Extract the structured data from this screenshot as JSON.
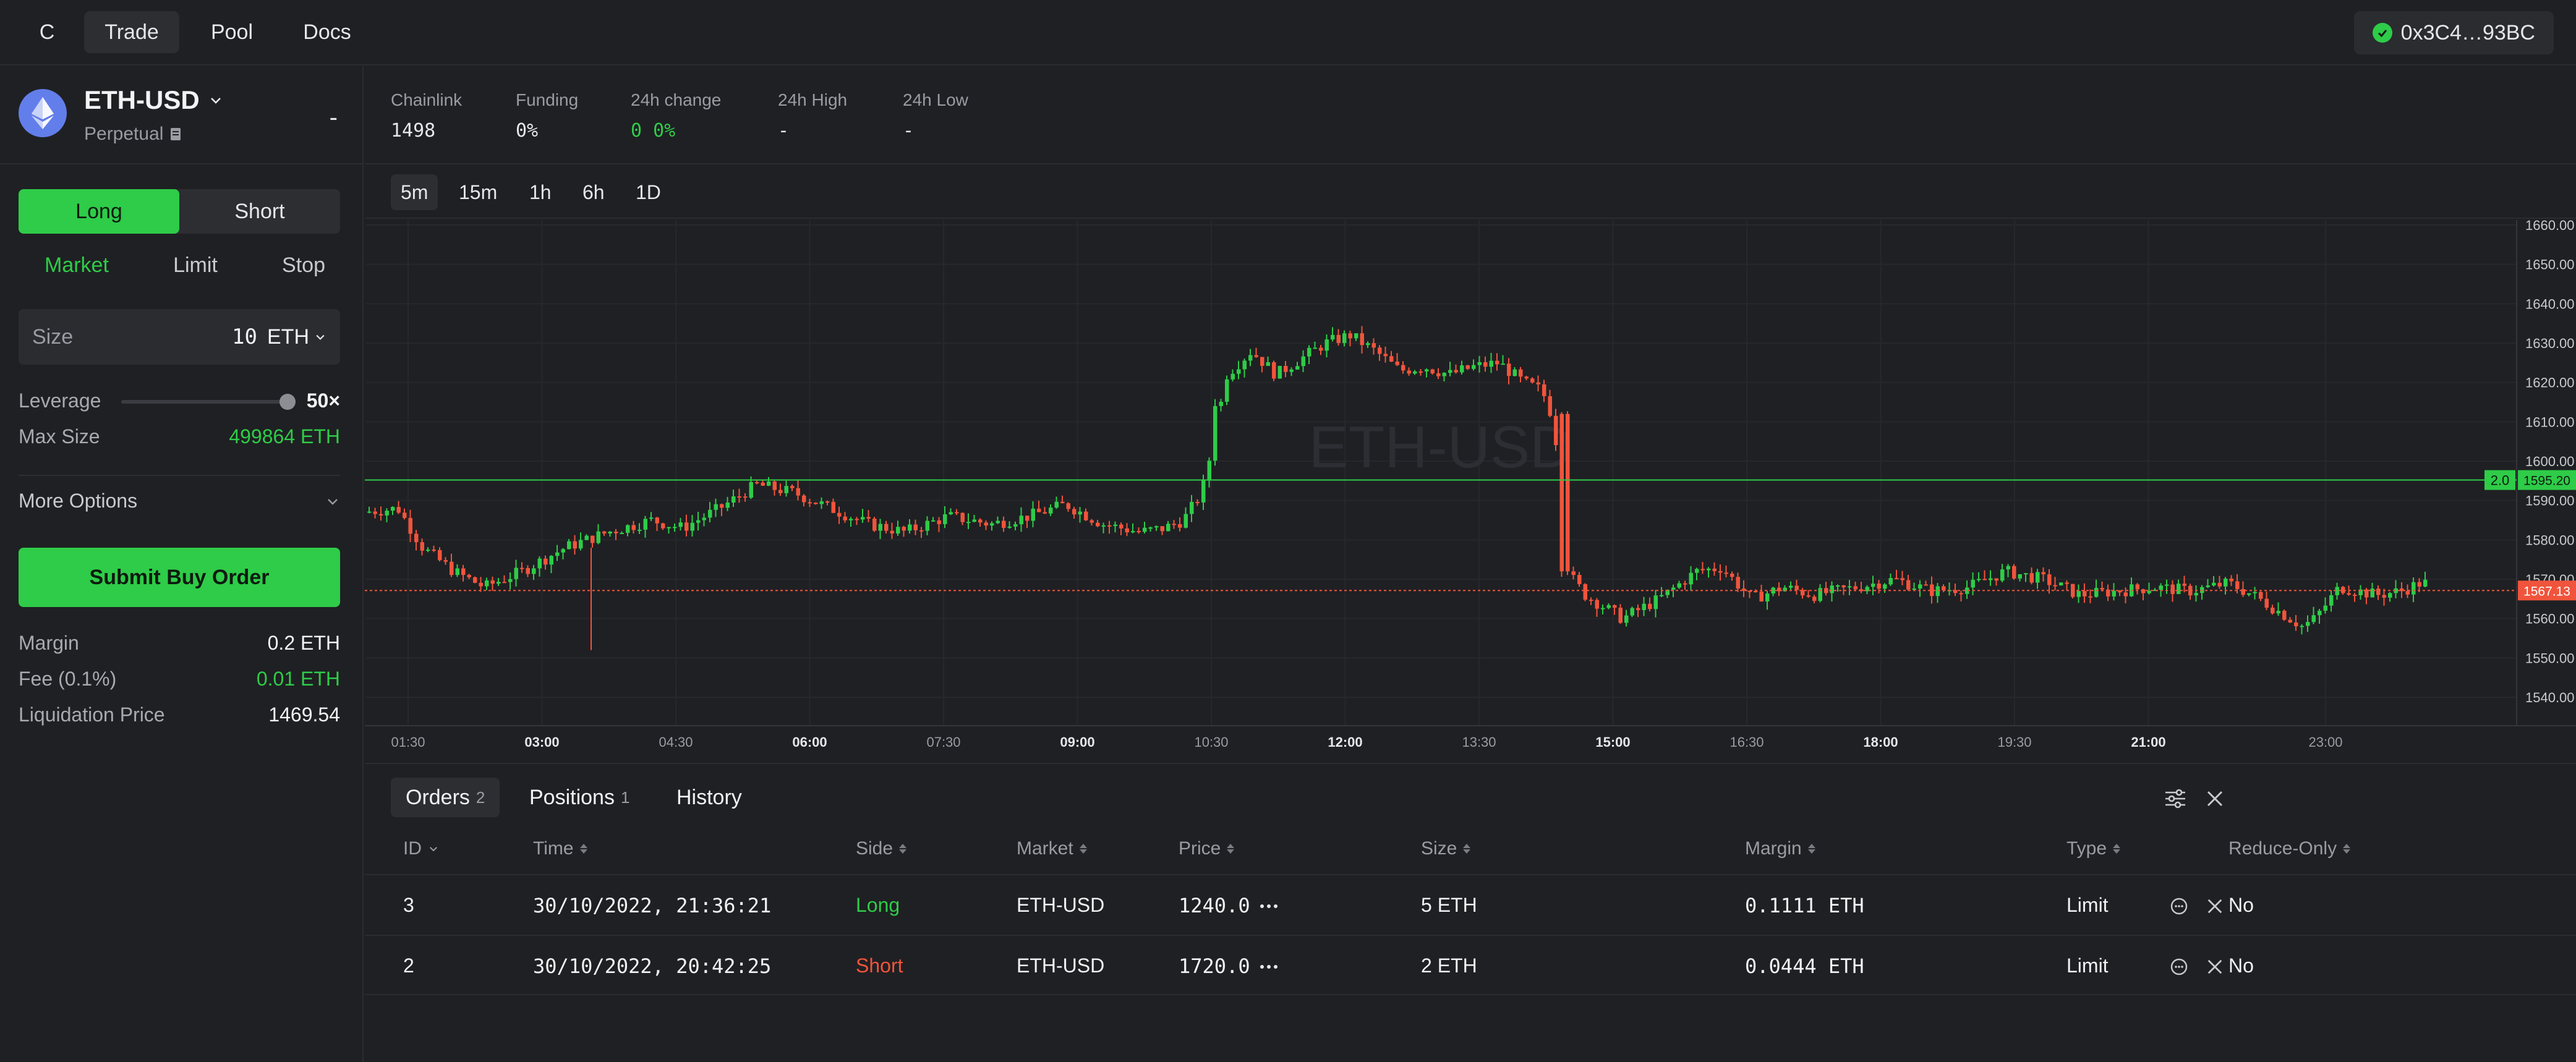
{
  "nav": {
    "logo": "C",
    "items": [
      {
        "label": "Trade",
        "active": true
      },
      {
        "label": "Pool",
        "active": false
      },
      {
        "label": "Docs",
        "active": false
      }
    ],
    "wallet": "0x3C4…93BC"
  },
  "market": {
    "name": "ETH-USD",
    "type": "Perpetual",
    "price": "-"
  },
  "stats": [
    {
      "label": "Chainlink",
      "value": "1498"
    },
    {
      "label": "Funding",
      "value": "0%"
    },
    {
      "label": "24h change",
      "value": "0 0%"
    },
    {
      "label": "24h High",
      "value": "-"
    },
    {
      "label": "24h Low",
      "value": "-"
    }
  ],
  "trade": {
    "sides": [
      "Long",
      "Short"
    ],
    "order_types": [
      "Market",
      "Limit",
      "Stop"
    ],
    "size_label": "Size",
    "size_value": "10",
    "size_unit": "ETH",
    "leverage_label": "Leverage",
    "leverage_value": "50×",
    "leverage_fraction": 1.0,
    "max_size_label": "Max Size",
    "max_size_value": "499864 ETH",
    "more_options": "More Options",
    "submit": "Submit Buy Order",
    "margin_label": "Margin",
    "margin_value": "0.2 ETH",
    "fee_label": "Fee (0.1%)",
    "fee_value": "0.01 ETH",
    "liq_label": "Liquidation Price",
    "liq_value": "1469.54"
  },
  "timeframes": [
    "5m",
    "15m",
    "1h",
    "6h",
    "1D"
  ],
  "chart": {
    "watermark": "ETH-USD",
    "y_ticks": [
      "1660.00",
      "1650.00",
      "1640.00",
      "1630.00",
      "1620.00",
      "1610.00",
      "1600.00",
      "1590.00",
      "1580.00",
      "1570.00",
      "1560.00",
      "1550.00",
      "1540.00"
    ],
    "x_ticks": [
      "01:30",
      "03:00",
      "04:30",
      "06:00",
      "07:30",
      "09:00",
      "10:30",
      "12:00",
      "13:30",
      "15:00",
      "16:30",
      "18:00",
      "19:30",
      "21:00",
      "23:00"
    ],
    "order_line": {
      "label": "2.0",
      "price": "1595.20",
      "value": 1595.2
    },
    "last_price": {
      "price": "1567.13",
      "value": 1567.13
    },
    "colors": {
      "up": "#2ecc48",
      "down": "#f0543c"
    }
  },
  "orders": {
    "tabs": [
      {
        "label": "Orders",
        "count": "2"
      },
      {
        "label": "Positions",
        "count": "1"
      },
      {
        "label": "History",
        "count": ""
      }
    ],
    "columns": [
      "ID",
      "Time",
      "Side",
      "Market",
      "Price",
      "Size",
      "Margin",
      "Type",
      "Reduce-Only"
    ],
    "rows": [
      {
        "id": "3",
        "time": "30/10/2022, 21:36:21",
        "side": "Long",
        "market": "ETH-USD",
        "price": "1240.0",
        "size": "5 ETH",
        "margin": "0.1111 ETH",
        "type": "Limit",
        "reduce": "No"
      },
      {
        "id": "2",
        "time": "30/10/2022, 20:42:25",
        "side": "Short",
        "market": "ETH-USD",
        "price": "1720.0",
        "size": "2 ETH",
        "margin": "0.0444 ETH",
        "type": "Limit",
        "reduce": "No"
      }
    ]
  }
}
